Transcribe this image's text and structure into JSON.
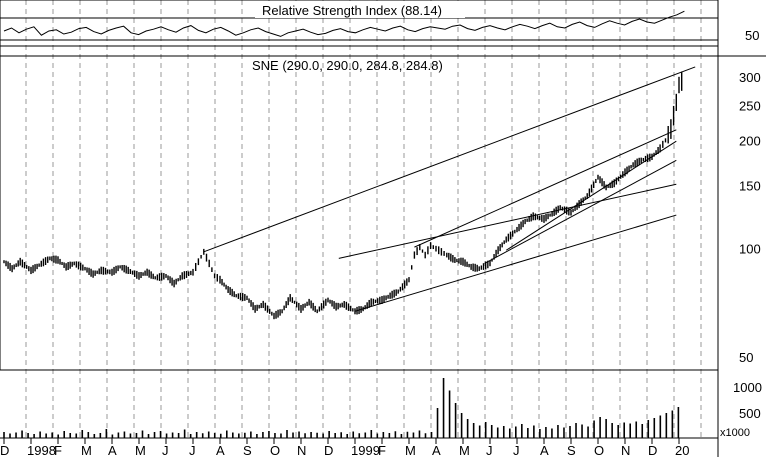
{
  "rsi_panel": {
    "label": "Relative Strength Index (88.14)",
    "axis": [
      {
        "text": "50",
        "v": 50
      }
    ],
    "upper_line": 70,
    "lower_line": 30
  },
  "price_panel": {
    "label": "SNE (290.0, 290.0, 284.8, 284.8)",
    "axis": [
      {
        "text": "300",
        "v": 300
      },
      {
        "text": "250",
        "v": 250
      },
      {
        "text": "200",
        "v": 200
      },
      {
        "text": "150",
        "v": 150
      },
      {
        "text": "100",
        "v": 100
      },
      {
        "text": "50",
        "v": 50
      }
    ]
  },
  "volume_panel": {
    "axis": [
      {
        "text": "1000",
        "v": 1000
      },
      {
        "text": "500",
        "v": 500
      }
    ],
    "unit": "x1000"
  },
  "x_axis": [
    {
      "text": "D",
      "i": 0
    },
    {
      "text": "1998",
      "i": 1
    },
    {
      "text": "F",
      "i": 2
    },
    {
      "text": "M",
      "i": 3
    },
    {
      "text": "A",
      "i": 4
    },
    {
      "text": "M",
      "i": 5
    },
    {
      "text": "J",
      "i": 6
    },
    {
      "text": "J",
      "i": 7
    },
    {
      "text": "A",
      "i": 8
    },
    {
      "text": "S",
      "i": 9
    },
    {
      "text": "O",
      "i": 10
    },
    {
      "text": "N",
      "i": 11
    },
    {
      "text": "D",
      "i": 12
    },
    {
      "text": "1999",
      "i": 13
    },
    {
      "text": "F",
      "i": 14
    },
    {
      "text": "M",
      "i": 15
    },
    {
      "text": "A",
      "i": 16
    },
    {
      "text": "M",
      "i": 17
    },
    {
      "text": "J",
      "i": 18
    },
    {
      "text": "J",
      "i": 19
    },
    {
      "text": "A",
      "i": 20
    },
    {
      "text": "S",
      "i": 21
    },
    {
      "text": "O",
      "i": 22
    },
    {
      "text": "N",
      "i": 23
    },
    {
      "text": "D",
      "i": 24
    },
    {
      "text": "20",
      "i": 25
    }
  ],
  "chart_data": {
    "type": "line",
    "title": "SNE (290.0, 290.0, 284.8, 284.8)",
    "x_start": "1997-12",
    "x_end": "2000-01",
    "y_scale": "log",
    "ylim": [
      50,
      320
    ],
    "series": [
      {
        "values": [
          [
            0,
            92
          ],
          [
            0.3,
            88
          ],
          [
            0.6,
            92
          ],
          [
            1.0,
            87
          ],
          [
            1.3,
            90
          ],
          [
            1.7,
            94
          ],
          [
            2.0,
            93
          ],
          [
            2.3,
            89
          ],
          [
            2.6,
            91
          ],
          [
            3.0,
            88
          ],
          [
            3.3,
            85
          ],
          [
            3.6,
            87
          ],
          [
            4.0,
            86
          ],
          [
            4.3,
            89
          ],
          [
            4.6,
            87
          ],
          [
            5.0,
            84
          ],
          [
            5.3,
            86
          ],
          [
            5.6,
            83
          ],
          [
            6.0,
            84
          ],
          [
            6.3,
            80
          ],
          [
            6.6,
            84
          ],
          [
            7.0,
            86
          ],
          [
            7.2,
            92
          ],
          [
            7.4,
            98
          ],
          [
            7.6,
            91
          ],
          [
            7.8,
            84
          ],
          [
            8.0,
            82
          ],
          [
            8.3,
            77
          ],
          [
            8.6,
            74
          ],
          [
            9.0,
            73
          ],
          [
            9.3,
            68
          ],
          [
            9.6,
            70
          ],
          [
            10.0,
            65
          ],
          [
            10.3,
            67
          ],
          [
            10.6,
            73
          ],
          [
            11.0,
            68
          ],
          [
            11.3,
            71
          ],
          [
            11.6,
            67
          ],
          [
            12.0,
            72
          ],
          [
            12.3,
            69
          ],
          [
            12.6,
            70
          ],
          [
            13.0,
            67
          ],
          [
            13.3,
            68
          ],
          [
            13.6,
            71
          ],
          [
            14.0,
            72
          ],
          [
            14.3,
            74
          ],
          [
            14.6,
            76
          ],
          [
            15.0,
            82
          ],
          [
            15.2,
            96
          ],
          [
            15.4,
            101
          ],
          [
            15.6,
            96
          ],
          [
            15.8,
            102
          ],
          [
            16.0,
            100
          ],
          [
            16.2,
            98
          ],
          [
            16.4,
            96
          ],
          [
            16.7,
            93
          ],
          [
            17.0,
            92
          ],
          [
            17.3,
            89
          ],
          [
            17.6,
            88
          ],
          [
            18.0,
            91
          ],
          [
            18.3,
            99
          ],
          [
            18.6,
            106
          ],
          [
            19.0,
            113
          ],
          [
            19.3,
            119
          ],
          [
            19.6,
            123
          ],
          [
            20.0,
            121
          ],
          [
            20.3,
            125
          ],
          [
            20.6,
            130
          ],
          [
            21.0,
            126
          ],
          [
            21.3,
            133
          ],
          [
            21.6,
            140
          ],
          [
            22.0,
            158
          ],
          [
            22.3,
            148
          ],
          [
            22.6,
            152
          ],
          [
            23.0,
            163
          ],
          [
            23.3,
            171
          ],
          [
            23.6,
            176
          ],
          [
            24.0,
            180
          ],
          [
            24.3,
            190
          ],
          [
            24.5,
            200
          ],
          [
            24.7,
            215
          ],
          [
            24.9,
            255
          ],
          [
            25.0,
            285
          ],
          [
            25.1,
            292
          ]
        ]
      }
    ],
    "volume": [
      120,
      90,
      110,
      150,
      100,
      80,
      130,
      90,
      110,
      70,
      140,
      100,
      90,
      160,
      120,
      80,
      100,
      180,
      70,
      110,
      130,
      90,
      100,
      150,
      80,
      120,
      140,
      90,
      110,
      100,
      170,
      80,
      120,
      95,
      130,
      100,
      85,
      150,
      110,
      90,
      105,
      130,
      80,
      120,
      140,
      100,
      90,
      160,
      110,
      130,
      95,
      120,
      105,
      90,
      140,
      100,
      115,
      80,
      130,
      95,
      110,
      160,
      90,
      120,
      100,
      135,
      80,
      125,
      110,
      150,
      95,
      120,
      600,
      1200,
      950,
      700,
      500,
      380,
      300,
      250,
      320,
      260,
      210,
      240,
      190,
      230,
      280,
      200,
      250,
      180,
      220,
      190,
      260,
      210,
      240,
      300,
      270,
      230,
      350,
      420,
      380,
      300,
      260,
      310,
      290,
      330,
      280,
      360,
      400,
      450,
      500,
      550,
      620
    ],
    "rsi": [
      55,
      60,
      52,
      58,
      62,
      48,
      55,
      57,
      50,
      53,
      59,
      61,
      54,
      50,
      56,
      60,
      63,
      52,
      49,
      55,
      58,
      62,
      57,
      53,
      60,
      64,
      56,
      52,
      58,
      61,
      55,
      48,
      52,
      57,
      60,
      54,
      50,
      46,
      52,
      55,
      58,
      53,
      49,
      51,
      56,
      59,
      54,
      52,
      57,
      61,
      58,
      55,
      60,
      63,
      57,
      54,
      59,
      62,
      60,
      58,
      63,
      65,
      59,
      56,
      61,
      64,
      60,
      57,
      62,
      66,
      63,
      59,
      64,
      68,
      62,
      60,
      66,
      70,
      64,
      61,
      67,
      72,
      68,
      65,
      71,
      75,
      70,
      68,
      73,
      78,
      82,
      88
    ],
    "trendlines": [
      [
        [
          7.4,
          98
        ],
        [
          25.6,
          320
        ]
      ],
      [
        [
          13.0,
          67
        ],
        [
          24.9,
          124
        ]
      ],
      [
        [
          12.4,
          94
        ],
        [
          24.9,
          151
        ]
      ],
      [
        [
          15.2,
          101
        ],
        [
          24.9,
          214
        ]
      ],
      [
        [
          17.8,
          91
        ],
        [
          24.9,
          176
        ]
      ],
      [
        [
          18.6,
          99
        ],
        [
          24.9,
          199
        ]
      ]
    ]
  }
}
